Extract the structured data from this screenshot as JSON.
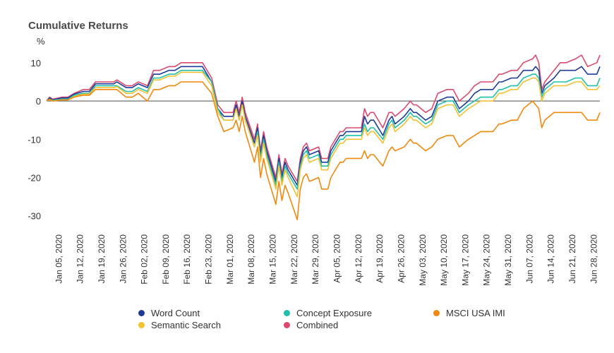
{
  "chart_data": {
    "type": "line",
    "title": "Cumulative Returns",
    "ylabel": "%",
    "xlabel": "",
    "ylim": [
      -33,
      12
    ],
    "yticks": [
      -30,
      -20,
      -10,
      0,
      10
    ],
    "xlim": [
      "2020-01-01",
      "2020-06-30"
    ],
    "x_tick_labels": [
      {
        "date": "2020-01-05",
        "label": "Jan 05, 2020"
      },
      {
        "date": "2020-01-12",
        "label": "Jan 12, 2020"
      },
      {
        "date": "2020-01-19",
        "label": "Jan 19, 2020"
      },
      {
        "date": "2020-01-26",
        "label": "Jan 26, 2020"
      },
      {
        "date": "2020-02-02",
        "label": "Feb 02, 2020"
      },
      {
        "date": "2020-02-09",
        "label": "Feb 09, 2020"
      },
      {
        "date": "2020-02-16",
        "label": "Feb 16, 2020"
      },
      {
        "date": "2020-02-23",
        "label": "Feb 23, 2020"
      },
      {
        "date": "2020-03-01",
        "label": "Mar 01, 2020"
      },
      {
        "date": "2020-03-08",
        "label": "Mar 08, 2020"
      },
      {
        "date": "2020-03-15",
        "label": "Mar 15, 2020"
      },
      {
        "date": "2020-03-22",
        "label": "Mar 22, 2020"
      },
      {
        "date": "2020-03-29",
        "label": "Mar 29, 2020"
      },
      {
        "date": "2020-04-05",
        "label": "Apr 05, 2020"
      },
      {
        "date": "2020-04-12",
        "label": "Apr 12, 2020"
      },
      {
        "date": "2020-04-19",
        "label": "Apr 19, 2020"
      },
      {
        "date": "2020-04-26",
        "label": "Apr 26, 2020"
      },
      {
        "date": "2020-05-03",
        "label": "May 03, 2020"
      },
      {
        "date": "2020-05-10",
        "label": "May 10, 2020"
      },
      {
        "date": "2020-05-17",
        "label": "May 17, 2020"
      },
      {
        "date": "2020-05-24",
        "label": "May 24, 2020"
      },
      {
        "date": "2020-05-31",
        "label": "May 31, 2020"
      },
      {
        "date": "2020-06-07",
        "label": "Jun 07, 2020"
      },
      {
        "date": "2020-06-14",
        "label": "Jun 14, 2020"
      },
      {
        "date": "2020-06-21",
        "label": "Jun 21, 2020"
      },
      {
        "date": "2020-06-28",
        "label": "Jun 28, 2020"
      }
    ],
    "zero_line": true,
    "grid": false,
    "legend_position": "bottom",
    "x": [
      "2020-01-01",
      "2020-01-02",
      "2020-01-03",
      "2020-01-06",
      "2020-01-08",
      "2020-01-10",
      "2020-01-13",
      "2020-01-15",
      "2020-01-17",
      "2020-01-21",
      "2020-01-23",
      "2020-01-24",
      "2020-01-27",
      "2020-01-29",
      "2020-01-31",
      "2020-02-03",
      "2020-02-05",
      "2020-02-07",
      "2020-02-10",
      "2020-02-12",
      "2020-02-14",
      "2020-02-18",
      "2020-02-19",
      "2020-02-21",
      "2020-02-24",
      "2020-02-26",
      "2020-02-28",
      "2020-03-02",
      "2020-03-03",
      "2020-03-04",
      "2020-03-05",
      "2020-03-06",
      "2020-03-09",
      "2020-03-10",
      "2020-03-11",
      "2020-03-12",
      "2020-03-13",
      "2020-03-16",
      "2020-03-17",
      "2020-03-18",
      "2020-03-19",
      "2020-03-20",
      "2020-03-23",
      "2020-03-24",
      "2020-03-25",
      "2020-03-26",
      "2020-03-27",
      "2020-03-30",
      "2020-03-31",
      "2020-04-01",
      "2020-04-02",
      "2020-04-03",
      "2020-04-06",
      "2020-04-07",
      "2020-04-08",
      "2020-04-09",
      "2020-04-13",
      "2020-04-14",
      "2020-04-15",
      "2020-04-16",
      "2020-04-17",
      "2020-04-20",
      "2020-04-21",
      "2020-04-22",
      "2020-04-23",
      "2020-04-24",
      "2020-04-27",
      "2020-04-28",
      "2020-04-29",
      "2020-04-30",
      "2020-05-01",
      "2020-05-04",
      "2020-05-06",
      "2020-05-08",
      "2020-05-11",
      "2020-05-13",
      "2020-05-15",
      "2020-05-18",
      "2020-05-20",
      "2020-05-22",
      "2020-05-26",
      "2020-05-28",
      "2020-05-29",
      "2020-06-01",
      "2020-06-03",
      "2020-06-05",
      "2020-06-08",
      "2020-06-09",
      "2020-06-10",
      "2020-06-11",
      "2020-06-12",
      "2020-06-15",
      "2020-06-17",
      "2020-06-19",
      "2020-06-22",
      "2020-06-24",
      "2020-06-26",
      "2020-06-29",
      "2020-06-30"
    ],
    "series": [
      {
        "name": "Combined",
        "color": "#d94a6e",
        "values": [
          0,
          1,
          0.5,
          1,
          1,
          2,
          3,
          3,
          5,
          5,
          5,
          5.5,
          4,
          4,
          5,
          4,
          8,
          8,
          9,
          9,
          10,
          10,
          10,
          10,
          6,
          -1,
          -3,
          -3,
          0,
          -3,
          1,
          -3,
          -10,
          -6,
          -13,
          -8,
          -12,
          -20,
          -14,
          -19,
          -15,
          -17,
          -21,
          -15,
          -12,
          -11,
          -13,
          -12,
          -15,
          -15,
          -15,
          -12,
          -8,
          -8,
          -7,
          -7,
          -7,
          -2,
          -4,
          -3,
          -3,
          -7,
          -5,
          -3,
          -3,
          -4,
          -2,
          -1,
          0,
          -1,
          -1,
          -3,
          -2,
          2,
          3,
          3,
          0,
          2,
          4,
          5,
          5,
          7,
          7,
          8,
          8,
          10,
          11,
          12,
          10,
          3,
          5,
          8,
          10,
          10,
          11,
          12,
          9,
          10,
          12
        ]
      },
      {
        "name": "Word Count",
        "color": "#1f3b99",
        "values": [
          0,
          0.8,
          0.3,
          0.8,
          0.8,
          1.8,
          2.5,
          2.5,
          4.5,
          4.5,
          4.5,
          5,
          3.5,
          3.5,
          4.5,
          3.5,
          7,
          7,
          8,
          8,
          9,
          9,
          9,
          9,
          5,
          -2,
          -4,
          -4,
          -1,
          -4,
          0,
          -4,
          -11,
          -7,
          -14,
          -9,
          -13,
          -21,
          -15,
          -20,
          -16,
          -18,
          -22,
          -16,
          -13,
          -12,
          -14,
          -13,
          -16,
          -16,
          -16,
          -13,
          -9,
          -9,
          -8,
          -8,
          -8,
          -4,
          -6,
          -5,
          -5,
          -9,
          -7,
          -5,
          -4,
          -6,
          -4,
          -3,
          -2,
          -3,
          -3,
          -5,
          -4,
          0,
          1,
          1,
          -2,
          0,
          2,
          3,
          3,
          5,
          5,
          6,
          6,
          8,
          8,
          9,
          8,
          2,
          4,
          6,
          8,
          8,
          8,
          9,
          7,
          7,
          9
        ]
      },
      {
        "name": "Concept Exposure",
        "color": "#21bfa8",
        "values": [
          0,
          0.5,
          0.2,
          0.5,
          0.5,
          1.5,
          2,
          2,
          4,
          4,
          4,
          4,
          2.5,
          2.5,
          3.5,
          2.5,
          6,
          6,
          7,
          7,
          8,
          8,
          8,
          8,
          5,
          -2,
          -5,
          -5,
          -2,
          -5,
          -1,
          -5,
          -12,
          -8,
          -15,
          -10,
          -14,
          -22,
          -16,
          -21,
          -17,
          -19,
          -23,
          -17,
          -14,
          -13,
          -15,
          -14,
          -17,
          -17,
          -17,
          -14,
          -10,
          -10,
          -9,
          -9,
          -9,
          -6,
          -8,
          -7,
          -7,
          -10,
          -8,
          -6,
          -5,
          -7,
          -5,
          -4,
          -3,
          -4,
          -4,
          -6,
          -5,
          -1,
          0,
          0,
          -3,
          -1,
          0,
          1,
          1,
          3,
          3,
          4,
          4,
          6,
          7,
          7,
          6,
          1,
          3,
          5,
          5,
          5,
          6,
          6,
          4,
          4,
          6
        ]
      },
      {
        "name": "Semantic Search",
        "color": "#f2c233",
        "values": [
          0,
          0.3,
          0,
          0.3,
          0.3,
          1.2,
          1.8,
          1.8,
          3.5,
          3.5,
          3.5,
          3.8,
          2,
          2,
          3,
          2,
          5.5,
          5.5,
          6.5,
          6.5,
          7.5,
          7.5,
          7.5,
          7.5,
          4,
          -3,
          -5,
          -5,
          -2,
          -5,
          -1,
          -5,
          -12,
          -9,
          -16,
          -11,
          -15,
          -23,
          -17,
          -22,
          -18,
          -20,
          -25,
          -18,
          -15,
          -14,
          -16,
          -15,
          -18,
          -18,
          -18,
          -15,
          -11,
          -11,
          -10,
          -10,
          -10,
          -7,
          -9,
          -8,
          -8,
          -11,
          -9,
          -7,
          -6,
          -8,
          -6,
          -5,
          -4,
          -5,
          -5,
          -7,
          -6,
          -2,
          -1,
          -1,
          -4,
          -2,
          -1,
          0,
          0,
          2,
          2,
          3,
          3,
          5,
          6,
          6,
          5,
          0,
          2,
          4,
          4,
          4,
          5,
          5,
          3,
          3,
          4
        ]
      },
      {
        "name": "MSCI USA IMI",
        "color": "#f0890e",
        "values": [
          0,
          0.5,
          0,
          0.3,
          0.3,
          1,
          1.5,
          1.5,
          3,
          3,
          3,
          3,
          1,
          1,
          2,
          0,
          3,
          3,
          4,
          4,
          5,
          5,
          5,
          5,
          2,
          -4,
          -8,
          -7,
          -5,
          -8,
          -4,
          -8,
          -16,
          -12,
          -20,
          -15,
          -19,
          -27,
          -21,
          -26,
          -22,
          -24,
          -31,
          -23,
          -20,
          -19,
          -21,
          -20,
          -23,
          -23,
          -23,
          -20,
          -16,
          -16,
          -15,
          -15,
          -15,
          -13,
          -15,
          -14,
          -14,
          -17,
          -15,
          -13,
          -12,
          -13,
          -12,
          -11,
          -10,
          -11,
          -11,
          -13,
          -12,
          -10,
          -9,
          -9,
          -12,
          -10,
          -9,
          -8,
          -8,
          -6,
          -6,
          -5,
          -5,
          -2,
          0,
          -1,
          -2,
          -7,
          -5,
          -3,
          -3,
          -3,
          -3,
          -3,
          -5,
          -5,
          -3
        ]
      }
    ],
    "legend": [
      {
        "name": "Word Count",
        "color": "#1f3b99"
      },
      {
        "name": "Concept Exposure",
        "color": "#21bfa8"
      },
      {
        "name": "MSCI USA IMI",
        "color": "#f0890e"
      },
      {
        "name": "Semantic Search",
        "color": "#f2c233"
      },
      {
        "name": "Combined",
        "color": "#d94a6e"
      }
    ]
  }
}
